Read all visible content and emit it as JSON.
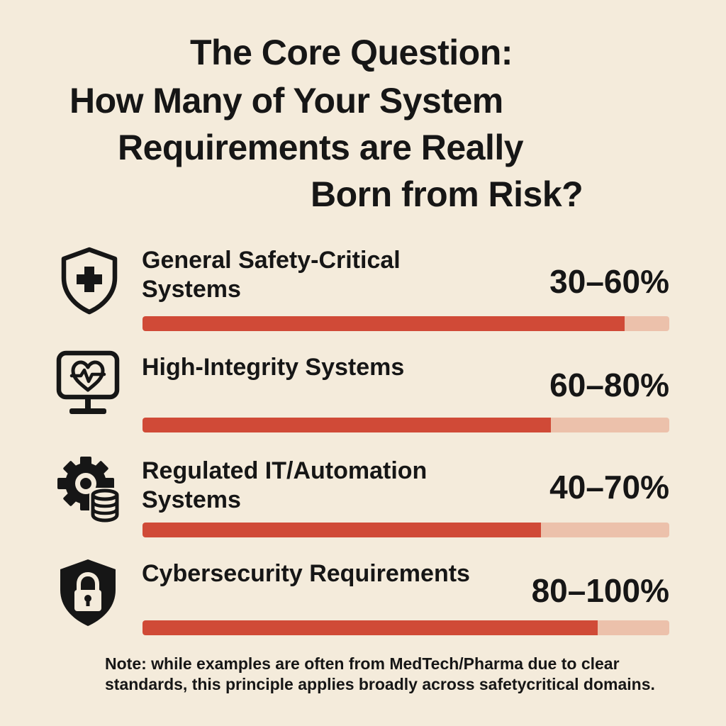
{
  "title": {
    "lines": [
      "The Core Question:",
      "How Many of Your System",
      "Requirements are Really",
      "Born from Risk?"
    ]
  },
  "rows": [
    {
      "label": "General Safety-Critical Systems",
      "percent_text": "30–60%",
      "bar_fill_fraction": 0.915,
      "icon": "shield-medical-cross-icon"
    },
    {
      "label": "High-Integrity Systems",
      "percent_text": "60–80%",
      "bar_fill_fraction": 0.775,
      "icon": "monitor-heartbeat-icon"
    },
    {
      "label": "Regulated IT/Automation Systems",
      "percent_text": "40–70%",
      "bar_fill_fraction": 0.757,
      "icon": "gear-database-icon"
    },
    {
      "label": "Cybersecurity Requirements",
      "percent_text": "80–100%",
      "bar_fill_fraction": 0.864,
      "icon": "shield-lock-icon"
    }
  ],
  "note": "Note: while examples are often from MedTech/Pharma due to clear standards, this principle applies broadly across safetycritical domains.",
  "colors": {
    "background": "#f4ebdb",
    "bar_fill": "#d04a37",
    "bar_track": "#ecc1ab",
    "text": "#161616"
  }
}
